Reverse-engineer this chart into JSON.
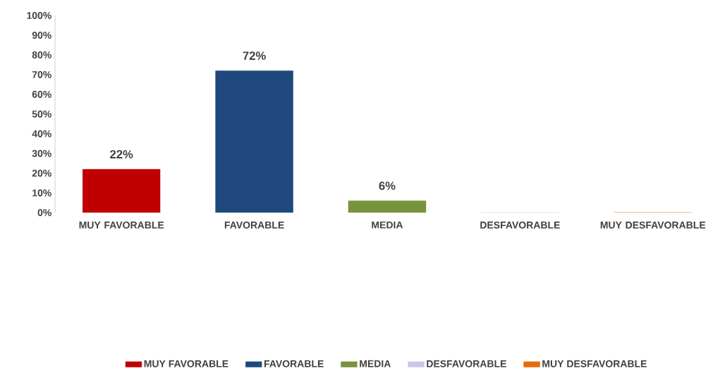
{
  "chart_data": {
    "type": "bar",
    "categories": [
      "MUY FAVORABLE",
      "FAVORABLE",
      "MEDIA",
      "DESFAVORABLE",
      "MUY DESFAVORABLE"
    ],
    "series": [
      {
        "name": "MUY FAVORABLE",
        "color": "#c00000",
        "values": [
          22,
          null,
          null,
          null,
          null
        ],
        "value_labels": [
          "22%",
          null,
          null,
          null,
          null
        ]
      },
      {
        "name": "FAVORABLE",
        "color": "#1f497d",
        "values": [
          null,
          72,
          null,
          null,
          null
        ],
        "value_labels": [
          null,
          "72%",
          null,
          null,
          null
        ]
      },
      {
        "name": "MEDIA",
        "color": "#77933c",
        "values": [
          null,
          null,
          6,
          null,
          null
        ],
        "value_labels": [
          null,
          null,
          "6%",
          null,
          null
        ]
      },
      {
        "name": "DESFAVORABLE",
        "color": "#c8c8e8",
        "values": [
          null,
          null,
          null,
          0,
          null
        ]
      },
      {
        "name": "MUY DESFAVORABLE",
        "color": "#e46c0a",
        "values": [
          null,
          null,
          null,
          null,
          0
        ]
      }
    ],
    "ylim": [
      0,
      100
    ],
    "yticks": [
      {
        "value": 0,
        "label": "0%"
      },
      {
        "value": 10,
        "label": "10%"
      },
      {
        "value": 20,
        "label": "20%"
      },
      {
        "value": 30,
        "label": "30%"
      },
      {
        "value": 40,
        "label": "40%"
      },
      {
        "value": 50,
        "label": "50%"
      },
      {
        "value": 60,
        "label": "60%"
      },
      {
        "value": 70,
        "label": "70%"
      },
      {
        "value": 80,
        "label": "80%"
      },
      {
        "value": 90,
        "label": "90%"
      },
      {
        "value": 100,
        "label": "100%"
      }
    ],
    "legend": "bottom"
  }
}
